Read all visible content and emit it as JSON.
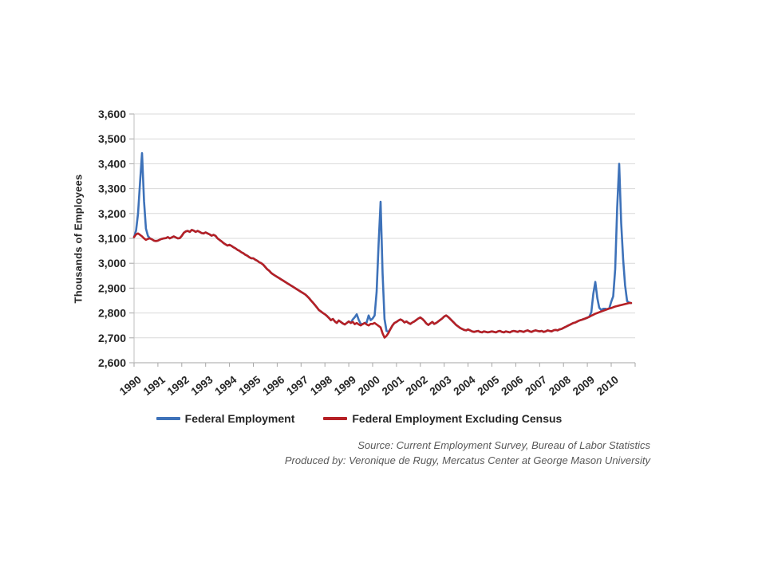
{
  "footer": {
    "source_line": "Source: Current Employment Survey, Bureau of Labor Statistics",
    "produced_line": "Produced by: Veronique de Rugy, Mercatus Center at George Mason University"
  },
  "chart_data": {
    "type": "line",
    "title": "",
    "xlabel": "",
    "ylabel": "Thousands of Employees",
    "ylim": [
      2600,
      3600
    ],
    "grid": "horizontal",
    "legend_position": "bottom",
    "colors": {
      "gridline": "#d9d9d9",
      "axis": "#a6a6a6",
      "tick_text": "#262626"
    },
    "ytick_values": [
      2600,
      2700,
      2800,
      2900,
      3000,
      3100,
      3200,
      3300,
      3400,
      3500,
      3600
    ],
    "ytick_labels": [
      "2,600",
      "2,700",
      "2,800",
      "2,900",
      "3,000",
      "3,100",
      "3,200",
      "3,300",
      "3,400",
      "3,500",
      "3,600"
    ],
    "xtick_labels": [
      "1990",
      "1991",
      "1992",
      "1993",
      "1994",
      "1995",
      "1996",
      "1997",
      "1998",
      "1999",
      "2000",
      "2001",
      "2002",
      "2003",
      "2004",
      "2005",
      "2006",
      "2007",
      "2008",
      "2009",
      "2010"
    ],
    "x_start": "1990-01",
    "x_end": "2010-11",
    "points_per_year": 12,
    "series": [
      {
        "name": "Federal Employment",
        "color": "#3E72B9",
        "values": [
          3105,
          3131,
          3200,
          3324,
          3443,
          3250,
          3139,
          3110,
          3100,
          3096,
          3091,
          3089,
          3091,
          3095,
          3098,
          3100,
          3101,
          3105,
          3100,
          3104,
          3108,
          3104,
          3100,
          3101,
          3110,
          3122,
          3128,
          3130,
          3126,
          3134,
          3131,
          3126,
          3130,
          3126,
          3121,
          3120,
          3124,
          3120,
          3116,
          3111,
          3114,
          3110,
          3100,
          3094,
          3088,
          3081,
          3076,
          3071,
          3074,
          3070,
          3064,
          3060,
          3054,
          3050,
          3044,
          3040,
          3034,
          3030,
          3024,
          3020,
          3020,
          3014,
          3010,
          3004,
          3000,
          2994,
          2985,
          2976,
          2970,
          2961,
          2955,
          2950,
          2945,
          2940,
          2935,
          2930,
          2925,
          2920,
          2915,
          2910,
          2905,
          2900,
          2895,
          2890,
          2885,
          2880,
          2875,
          2868,
          2860,
          2850,
          2841,
          2832,
          2822,
          2812,
          2806,
          2800,
          2795,
          2788,
          2780,
          2771,
          2776,
          2766,
          2760,
          2770,
          2764,
          2758,
          2754,
          2760,
          2766,
          2760,
          2774,
          2783,
          2795,
          2772,
          2756,
          2755,
          2760,
          2762,
          2790,
          2771,
          2778,
          2790,
          2884,
          3078,
          3247,
          2958,
          2776,
          2728,
          2725,
          2736,
          2750,
          2760,
          2764,
          2770,
          2774,
          2770,
          2762,
          2766,
          2760,
          2756,
          2762,
          2766,
          2772,
          2778,
          2782,
          2776,
          2768,
          2758,
          2752,
          2758,
          2764,
          2756,
          2760,
          2766,
          2772,
          2778,
          2786,
          2790,
          2784,
          2776,
          2768,
          2760,
          2752,
          2746,
          2740,
          2736,
          2732,
          2730,
          2734,
          2730,
          2726,
          2724,
          2726,
          2728,
          2724,
          2722,
          2726,
          2724,
          2722,
          2724,
          2726,
          2724,
          2722,
          2726,
          2728,
          2724,
          2722,
          2726,
          2724,
          2722,
          2726,
          2728,
          2726,
          2724,
          2728,
          2726,
          2724,
          2728,
          2730,
          2726,
          2724,
          2728,
          2730,
          2728,
          2726,
          2728,
          2724,
          2726,
          2730,
          2728,
          2726,
          2730,
          2732,
          2730,
          2734,
          2736,
          2740,
          2744,
          2748,
          2752,
          2756,
          2760,
          2762,
          2766,
          2770,
          2772,
          2775,
          2778,
          2781,
          2785,
          2804,
          2878,
          2925,
          2860,
          2821,
          2812,
          2817,
          2817,
          2815,
          2818,
          2845,
          2867,
          2976,
          3223,
          3400,
          3162,
          3014,
          2911,
          2848,
          2842,
          2840
        ]
      },
      {
        "name": "Federal Employment Excluding Census",
        "color": "#B52025",
        "values": [
          3105,
          3116,
          3120,
          3114,
          3108,
          3100,
          3094,
          3098,
          3100,
          3096,
          3091,
          3089,
          3091,
          3095,
          3098,
          3100,
          3101,
          3105,
          3100,
          3104,
          3108,
          3104,
          3100,
          3101,
          3110,
          3122,
          3128,
          3130,
          3126,
          3134,
          3131,
          3126,
          3130,
          3126,
          3121,
          3120,
          3124,
          3120,
          3116,
          3111,
          3114,
          3110,
          3100,
          3094,
          3088,
          3081,
          3076,
          3071,
          3074,
          3070,
          3064,
          3060,
          3054,
          3050,
          3044,
          3040,
          3034,
          3030,
          3024,
          3020,
          3020,
          3014,
          3010,
          3004,
          3000,
          2994,
          2985,
          2976,
          2970,
          2961,
          2955,
          2950,
          2945,
          2940,
          2935,
          2930,
          2925,
          2920,
          2915,
          2910,
          2905,
          2900,
          2895,
          2890,
          2885,
          2880,
          2875,
          2868,
          2860,
          2850,
          2841,
          2832,
          2822,
          2812,
          2806,
          2800,
          2795,
          2788,
          2780,
          2771,
          2776,
          2766,
          2760,
          2770,
          2764,
          2758,
          2754,
          2760,
          2766,
          2760,
          2764,
          2755,
          2760,
          2754,
          2750,
          2755,
          2760,
          2754,
          2750,
          2756,
          2756,
          2760,
          2754,
          2748,
          2742,
          2718,
          2701,
          2708,
          2720,
          2736,
          2750,
          2760,
          2764,
          2770,
          2774,
          2770,
          2762,
          2766,
          2760,
          2756,
          2762,
          2766,
          2772,
          2778,
          2782,
          2776,
          2768,
          2758,
          2752,
          2758,
          2764,
          2756,
          2760,
          2766,
          2772,
          2778,
          2786,
          2790,
          2784,
          2776,
          2768,
          2760,
          2752,
          2746,
          2740,
          2736,
          2732,
          2730,
          2734,
          2730,
          2726,
          2724,
          2726,
          2728,
          2724,
          2722,
          2726,
          2724,
          2722,
          2724,
          2726,
          2724,
          2722,
          2726,
          2728,
          2724,
          2722,
          2726,
          2724,
          2722,
          2726,
          2728,
          2726,
          2724,
          2728,
          2726,
          2724,
          2728,
          2730,
          2726,
          2724,
          2728,
          2730,
          2728,
          2726,
          2728,
          2724,
          2726,
          2730,
          2728,
          2726,
          2730,
          2732,
          2730,
          2734,
          2736,
          2740,
          2744,
          2748,
          2752,
          2756,
          2760,
          2762,
          2766,
          2770,
          2772,
          2775,
          2778,
          2781,
          2785,
          2789,
          2793,
          2797,
          2800,
          2803,
          2806,
          2809,
          2812,
          2815,
          2818,
          2820,
          2823,
          2826,
          2828,
          2830,
          2832,
          2834,
          2836,
          2838,
          2840,
          2840
        ]
      }
    ]
  }
}
